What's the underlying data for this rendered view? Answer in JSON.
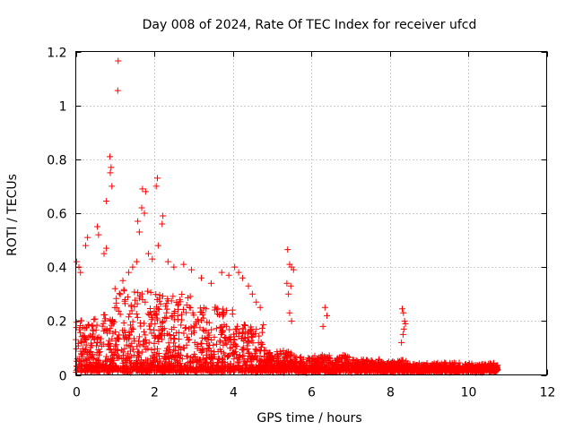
{
  "chart_data": {
    "type": "scatter",
    "title": "Day 008 of 2024, Rate Of TEC Index for receiver ufcd",
    "xlabel": "GPS time / hours",
    "ylabel": "ROTI / TECUs",
    "xlim": [
      0,
      12
    ],
    "ylim": [
      0,
      1.2
    ],
    "xticks": [
      0,
      2,
      4,
      6,
      8,
      10,
      12
    ],
    "xtick_labels": [
      "0",
      "2",
      "4",
      "6",
      "8",
      "10",
      "12"
    ],
    "yticks": [
      0,
      0.2,
      0.4,
      0.6,
      0.8,
      1.0,
      1.2
    ],
    "ytick_labels": [
      "0",
      "0.2",
      "0.4",
      "0.6",
      "0.8",
      "1",
      "1.2"
    ],
    "grid": true,
    "marker": "+",
    "color": "#ff0000",
    "series": [
      {
        "name": "ROTI",
        "points": [
          [
            1.08,
            1.165
          ],
          [
            1.07,
            1.055
          ],
          [
            0.87,
            0.81
          ],
          [
            0.9,
            0.77
          ],
          [
            0.88,
            0.75
          ],
          [
            0.92,
            0.7
          ],
          [
            0.78,
            0.645
          ],
          [
            2.08,
            0.73
          ],
          [
            2.05,
            0.7
          ],
          [
            1.7,
            0.69
          ],
          [
            1.78,
            0.68
          ],
          [
            1.68,
            0.62
          ],
          [
            1.75,
            0.6
          ],
          [
            2.22,
            0.59
          ],
          [
            2.2,
            0.56
          ],
          [
            1.58,
            0.57
          ],
          [
            1.62,
            0.53
          ],
          [
            0.55,
            0.55
          ],
          [
            0.58,
            0.52
          ],
          [
            0.3,
            0.51
          ],
          [
            0.25,
            0.48
          ],
          [
            0.78,
            0.47
          ],
          [
            0.72,
            0.45
          ],
          [
            0.02,
            0.42
          ],
          [
            0.08,
            0.4
          ],
          [
            0.12,
            0.38
          ],
          [
            2.1,
            0.48
          ],
          [
            2.35,
            0.42
          ],
          [
            2.5,
            0.4
          ],
          [
            2.75,
            0.41
          ],
          [
            2.95,
            0.39
          ],
          [
            3.2,
            0.36
          ],
          [
            3.45,
            0.34
          ],
          [
            3.72,
            0.38
          ],
          [
            3.9,
            0.37
          ],
          [
            4.05,
            0.4
          ],
          [
            4.15,
            0.38
          ],
          [
            4.25,
            0.36
          ],
          [
            4.4,
            0.33
          ],
          [
            4.5,
            0.3
          ],
          [
            4.6,
            0.27
          ],
          [
            4.7,
            0.25
          ],
          [
            1.0,
            0.32
          ],
          [
            1.2,
            0.35
          ],
          [
            1.35,
            0.38
          ],
          [
            1.45,
            0.4
          ],
          [
            1.55,
            0.42
          ],
          [
            1.85,
            0.45
          ],
          [
            1.95,
            0.43
          ],
          [
            5.4,
            0.465
          ],
          [
            5.45,
            0.41
          ],
          [
            5.5,
            0.4
          ],
          [
            5.55,
            0.39
          ],
          [
            5.38,
            0.34
          ],
          [
            5.48,
            0.33
          ],
          [
            5.42,
            0.3
          ],
          [
            5.45,
            0.23
          ],
          [
            5.5,
            0.2
          ],
          [
            6.35,
            0.25
          ],
          [
            6.4,
            0.22
          ],
          [
            6.3,
            0.18
          ],
          [
            8.32,
            0.245
          ],
          [
            8.35,
            0.23
          ],
          [
            8.38,
            0.2
          ],
          [
            8.4,
            0.19
          ],
          [
            8.36,
            0.17
          ],
          [
            8.34,
            0.15
          ],
          [
            8.3,
            0.12
          ]
        ]
      }
    ]
  }
}
